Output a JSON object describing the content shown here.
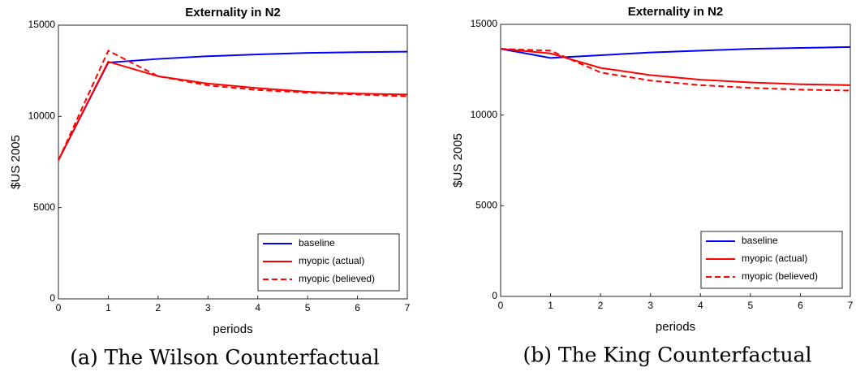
{
  "chart_data": [
    {
      "type": "line",
      "title": "Externality in N2",
      "caption": "(a) The Wilson Counterfactual",
      "x_label": "periods",
      "y_label": "$US 2005",
      "x": [
        0,
        1,
        2,
        3,
        4,
        5,
        6,
        7
      ],
      "xlim": [
        0,
        7
      ],
      "xticks": [
        0,
        1,
        2,
        3,
        4,
        5,
        6,
        7
      ],
      "ylim": [
        0,
        15000
      ],
      "yticks": [
        0,
        5000,
        10000,
        15000
      ],
      "legend": "lower right",
      "series": [
        {
          "name": "baseline",
          "color": "#0000ff",
          "line_style": "solid",
          "values": [
            7600,
            12950,
            13150,
            13300,
            13400,
            13480,
            13520,
            13550
          ]
        },
        {
          "name": "myopic (actual)",
          "color": "#ff0000",
          "line_style": "solid",
          "values": [
            7600,
            13000,
            12200,
            11800,
            11550,
            11350,
            11250,
            11200
          ]
        },
        {
          "name": "myopic (believed)",
          "color": "#ff0000",
          "line_style": "dashed",
          "values": [
            7600,
            13600,
            12200,
            11700,
            11450,
            11300,
            11200,
            11100
          ]
        }
      ]
    },
    {
      "type": "line",
      "title": "Externality in N2",
      "caption": "(b) The King Counterfactual",
      "x_label": "periods",
      "y_label": "$US 2005",
      "x": [
        0,
        1,
        2,
        3,
        4,
        5,
        6,
        7
      ],
      "xlim": [
        0,
        7
      ],
      "xticks": [
        0,
        1,
        2,
        3,
        4,
        5,
        6,
        7
      ],
      "ylim": [
        0,
        15000
      ],
      "yticks": [
        0,
        5000,
        10000,
        15000
      ],
      "legend": "lower right",
      "series": [
        {
          "name": "baseline",
          "color": "#0000ff",
          "line_style": "solid",
          "values": [
            13650,
            13150,
            13300,
            13450,
            13550,
            13650,
            13700,
            13750
          ]
        },
        {
          "name": "myopic (actual)",
          "color": "#ff0000",
          "line_style": "solid",
          "values": [
            13650,
            13400,
            12600,
            12200,
            11950,
            11800,
            11700,
            11650
          ]
        },
        {
          "name": "myopic (believed)",
          "color": "#ff0000",
          "line_style": "dashed",
          "values": [
            13650,
            13550,
            12350,
            11900,
            11650,
            11500,
            11400,
            11350
          ]
        }
      ]
    }
  ]
}
